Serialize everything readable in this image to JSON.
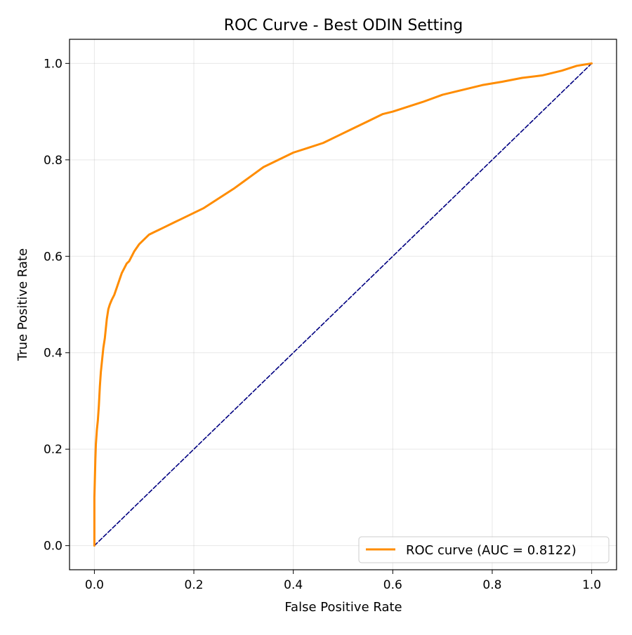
{
  "chart_data": {
    "type": "line",
    "title": "ROC Curve - Best ODIN Setting",
    "xlabel": "False Positive Rate",
    "ylabel": "True Positive Rate",
    "xlim": [
      -0.05,
      1.05
    ],
    "ylim": [
      -0.05,
      1.05
    ],
    "xticks": [
      0.0,
      0.2,
      0.4,
      0.6,
      0.8,
      1.0
    ],
    "yticks": [
      0.0,
      0.2,
      0.4,
      0.6,
      0.8,
      1.0
    ],
    "xtick_labels": [
      "0.0",
      "0.2",
      "0.4",
      "0.6",
      "0.8",
      "1.0"
    ],
    "ytick_labels": [
      "0.0",
      "0.2",
      "0.4",
      "0.6",
      "0.8",
      "1.0"
    ],
    "grid": true,
    "legend_position": "lower right",
    "series": [
      {
        "name": "ROC curve (AUC = 0.8122)",
        "color": "#ff8c00",
        "style": "solid",
        "x": [
          0.0,
          0.0,
          0.002,
          0.003,
          0.005,
          0.007,
          0.009,
          0.011,
          0.013,
          0.015,
          0.018,
          0.021,
          0.025,
          0.028,
          0.031,
          0.035,
          0.04,
          0.045,
          0.05,
          0.055,
          0.06,
          0.065,
          0.07,
          0.075,
          0.08,
          0.09,
          0.1,
          0.11,
          0.12,
          0.13,
          0.14,
          0.16,
          0.18,
          0.2,
          0.22,
          0.25,
          0.28,
          0.3,
          0.32,
          0.34,
          0.36,
          0.38,
          0.4,
          0.43,
          0.46,
          0.49,
          0.52,
          0.55,
          0.58,
          0.6,
          0.63,
          0.66,
          0.7,
          0.74,
          0.78,
          0.82,
          0.86,
          0.9,
          0.94,
          0.97,
          1.0
        ],
        "y": [
          0.0,
          0.1,
          0.18,
          0.21,
          0.24,
          0.26,
          0.29,
          0.33,
          0.36,
          0.38,
          0.41,
          0.43,
          0.47,
          0.49,
          0.5,
          0.51,
          0.52,
          0.535,
          0.55,
          0.565,
          0.575,
          0.585,
          0.59,
          0.6,
          0.61,
          0.625,
          0.635,
          0.645,
          0.65,
          0.655,
          0.66,
          0.67,
          0.68,
          0.69,
          0.7,
          0.72,
          0.74,
          0.755,
          0.77,
          0.785,
          0.795,
          0.805,
          0.815,
          0.825,
          0.835,
          0.85,
          0.865,
          0.88,
          0.895,
          0.9,
          0.91,
          0.92,
          0.935,
          0.945,
          0.955,
          0.962,
          0.97,
          0.975,
          0.985,
          0.995,
          1.0
        ]
      },
      {
        "name": "",
        "color": "#000080",
        "style": "dashed",
        "x": [
          0.0,
          1.0
        ],
        "y": [
          0.0,
          1.0
        ]
      }
    ]
  }
}
